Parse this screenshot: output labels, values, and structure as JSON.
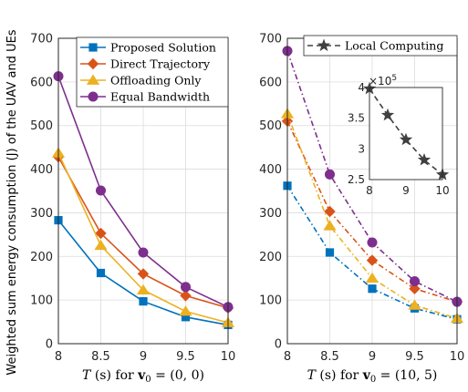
{
  "figure": {
    "ylabel": "Weighted sum energy consumption (J) of the UAV and UEs"
  },
  "chart_data": [
    {
      "type": "line",
      "xlabel": "T (s) for v₀ = (0, 0)",
      "xlabel_parts": {
        "var": "T",
        "mid": " (s) for ",
        "vec": "v",
        "sub": "0",
        "eq": " = (0, 0)"
      },
      "x": [
        8,
        8.5,
        9,
        9.5,
        10
      ],
      "x_ticks": [
        "8",
        "8.5",
        "9",
        "9.5",
        "10"
      ],
      "xlim": [
        8,
        10
      ],
      "ylim": [
        0,
        700
      ],
      "y_ticks": [
        "0",
        "100",
        "200",
        "300",
        "400",
        "500",
        "600",
        "700"
      ],
      "grid": true,
      "legend": "top-right",
      "series": [
        {
          "name": "Proposed Solution",
          "color": "#0072bd",
          "marker": "square",
          "dash": "solid",
          "values": [
            283,
            162,
            97,
            61,
            43
          ]
        },
        {
          "name": "Direct Trajectory",
          "color": "#d95319",
          "marker": "diamond",
          "dash": "solid",
          "values": [
            428,
            253,
            160,
            110,
            82
          ]
        },
        {
          "name": "Offloading Only",
          "color": "#edb120",
          "marker": "triangle",
          "dash": "solid",
          "values": [
            437,
            225,
            123,
            74,
            48
          ]
        },
        {
          "name": "Equal Bandwidth",
          "color": "#7e2f8e",
          "marker": "circle",
          "dash": "solid",
          "values": [
            613,
            351,
            209,
            130,
            84
          ]
        }
      ]
    },
    {
      "type": "line",
      "xlabel": "T (s) for v₀ = (10, 5)",
      "xlabel_parts": {
        "var": "T",
        "mid": " (s) for ",
        "vec": "v",
        "sub": "0",
        "eq": " = (10, 5)"
      },
      "x": [
        8,
        8.5,
        9,
        9.5,
        10
      ],
      "x_ticks": [
        "8",
        "8.5",
        "9",
        "9.5",
        "10"
      ],
      "xlim": [
        8,
        10
      ],
      "ylim": [
        0,
        700
      ],
      "y_ticks": [
        "0",
        "100",
        "200",
        "300",
        "400",
        "500",
        "600",
        "700"
      ],
      "grid": true,
      "legend": "top-right",
      "series": [
        {
          "name": "",
          "color": "#0072bd",
          "marker": "square",
          "dash": "dashdot",
          "values": [
            362,
            209,
            126,
            81,
            56
          ]
        },
        {
          "name": "",
          "color": "#d95319",
          "marker": "diamond",
          "dash": "dashdot",
          "values": [
            510,
            303,
            191,
            126,
            96
          ]
        },
        {
          "name": "",
          "color": "#edb120",
          "marker": "triangle",
          "dash": "dashdot",
          "values": [
            527,
            270,
            150,
            88,
            58
          ]
        },
        {
          "name": "",
          "color": "#7e2f8e",
          "marker": "circle",
          "dash": "dashdot",
          "values": [
            671,
            388,
            232,
            143,
            96
          ]
        }
      ],
      "legend_entries": [
        {
          "name": "Local Computing",
          "color": "#404040",
          "marker": "star",
          "dash": "dashed"
        }
      ],
      "inset": {
        "x": [
          8,
          8.5,
          9,
          9.5,
          10
        ],
        "x_ticks": [
          "8",
          "9",
          "10"
        ],
        "xlim": [
          8,
          10
        ],
        "ylim": [
          2.5,
          4
        ],
        "y_ticks": [
          "2.5",
          "3",
          "3.5",
          "4"
        ],
        "exponent_base": "×10",
        "exponent": "5",
        "series": [
          {
            "name": "Local Computing",
            "color": "#404040",
            "marker": "star",
            "dash": "dashed",
            "values": [
              3.98,
              3.55,
              3.15,
              2.82,
              2.58
            ]
          }
        ]
      }
    }
  ]
}
